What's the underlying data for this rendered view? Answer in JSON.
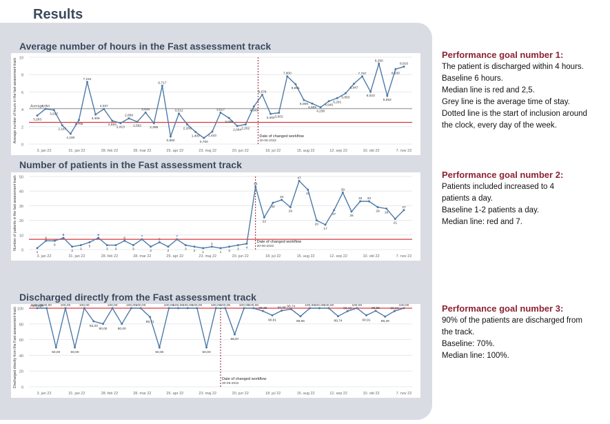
{
  "page": {
    "title": "Results"
  },
  "colors": {
    "series": "#4d79a7",
    "median": "#d9363e",
    "average": "#9a9a9a",
    "changed_workflow": "#8c1a2b",
    "goal_title": "#8c2233"
  },
  "chart_data": [
    {
      "type": "line",
      "title": "Average number of hours in the Fast assessment track",
      "ylabel": "Average number of hours in the fast assessment track",
      "ylim": [
        0,
        10
      ],
      "yticks": [
        "0",
        "2",
        "4",
        "6",
        "8",
        "10"
      ],
      "xticks": [
        "3. jan 22",
        "31. jan 22",
        "28. feb 22",
        "28. mar 22",
        "25. apr 22",
        "23. maj 22",
        "20. jun 22",
        "18. jul 22",
        "15. aug 22",
        "12. sep 22",
        "10. okt 22",
        "7. nov 22"
      ],
      "median": 2.5,
      "average": 4.1,
      "average_label": "Average",
      "changed_index": 26.5,
      "changed_label": "Date of changed workflow",
      "changed_date": "30-06-2022",
      "values": [
        3.283,
        4.054,
        3.917,
        2.167,
        1.19,
        2.766,
        7.151,
        3.406,
        4.037,
        2.683,
        2.413,
        2.958,
        2.562,
        3.634,
        2.396,
        6.717,
        0.883,
        3.512,
        2.266,
        1.4,
        0.7,
        1.433,
        3.617,
        3.009,
        2.084,
        2.262,
        4.34,
        5.678,
        3.483,
        3.602,
        7.8,
        6.891,
        5.069,
        4.665,
        4.238,
        4.945,
        5.291,
        5.853,
        6.947,
        7.797,
        6.023,
        9.25,
        5.552,
        8.63,
        8.916
      ],
      "labels": [
        "3,283",
        "4,054",
        "3,917",
        "2,167",
        "1,190",
        "2,766",
        "7,151",
        "3,406",
        "4,037",
        "2,683",
        "2,413",
        "2,958",
        "2,562",
        "3,634",
        "2,396",
        "6,717",
        "0,883",
        "3,512",
        "2,266",
        "1,400",
        "0,700",
        "1,433",
        "3,617",
        "3,009",
        "2,084",
        "2,262",
        "4,340",
        "5,678",
        "3,483",
        "3,602",
        "7,800",
        "6,891",
        "5,069",
        "4,665",
        "4,238",
        "4,945",
        "5,291",
        "5,853",
        "6,947",
        "7,797",
        "6,023",
        "9,250",
        "5,552",
        "8,630",
        "8,916"
      ]
    },
    {
      "type": "line",
      "title": "Number of patients in the Fast assessment track",
      "ylabel": "Number of patients in the fast assessment track",
      "ylim": [
        0,
        50
      ],
      "yticks": [
        "0",
        "10",
        "20",
        "30",
        "40",
        "50"
      ],
      "xticks": [
        "3. jan 22",
        "31. jan 22",
        "28. feb 22",
        "28. mar 22",
        "25. apr 22",
        "23. maj 22",
        "20. jun 22",
        "18. jul 22",
        "15. aug 22",
        "12. sep 22",
        "10. okt 22",
        "7. nov 22"
      ],
      "median": 7,
      "changed_index": 25,
      "changed_label": "Date of changed workflow",
      "changed_date": "30-06-2022",
      "values": [
        1,
        6,
        6,
        8,
        2,
        3,
        5,
        8,
        3,
        3,
        6,
        3,
        7,
        2,
        5,
        2,
        7,
        3,
        2,
        1,
        2,
        1,
        2,
        3,
        4,
        43,
        22,
        32,
        34,
        29,
        47,
        41,
        20,
        17,
        27,
        39,
        26,
        33,
        33,
        29,
        28,
        21,
        27
      ],
      "labels": [
        "1",
        "6",
        "6",
        "8",
        "2",
        "3",
        "5",
        "8",
        "3",
        "3",
        "6",
        "3",
        "7",
        "2",
        "5",
        "2",
        "7",
        "3",
        "2",
        "1",
        "2",
        "1",
        "2",
        "3",
        "4",
        "43",
        "22",
        "32",
        "34",
        "29",
        "47",
        "41",
        "20",
        "17",
        "27",
        "39",
        "26",
        "33",
        "33",
        "29",
        "28",
        "21",
        "27"
      ]
    },
    {
      "type": "line",
      "title": "Discharged directly from the Fast assessment track",
      "ylabel": "Discharged directly from the Fast assessment track",
      "ylim": [
        0,
        100
      ],
      "yticks": [
        "0",
        "20",
        "40",
        "60",
        "80",
        "100"
      ],
      "xticks": [
        "3. jan 22",
        "31. jan 22",
        "28. feb 22",
        "28. mar 22",
        "25. apr 22",
        "23. maj 22",
        "20. jun 22",
        "18. jul 22",
        "15. aug 22",
        "12. sep 22",
        "10. okt 22",
        "7. nov 22"
      ],
      "median": 100,
      "average_label": "Average",
      "changed_index": 19.5,
      "changed_label": "Date of changed workflow",
      "changed_date": "30-06-2022",
      "values": [
        100,
        100,
        50,
        100,
        50,
        100,
        83.33,
        80,
        100,
        80,
        100,
        100,
        88.71,
        50,
        100,
        100,
        100,
        100,
        50,
        100,
        100,
        66.67,
        100,
        100,
        96.35,
        90.91,
        96.88,
        98.74,
        89.66,
        100,
        100,
        100,
        89.74,
        96.15,
        100,
        90.91,
        96.55,
        89.29,
        96.24,
        100
      ],
      "labels": [
        "100,00",
        "100,00",
        "50,00",
        "100,00",
        "50,00",
        "100,00",
        "83,33",
        "80,00",
        "100,00",
        "80,00",
        "100,00",
        "100,00",
        "88,71",
        "50,00",
        "100,00",
        "100,00",
        "100,00",
        "100,00",
        "50,00",
        "100,00",
        "100,00",
        "66,67",
        "100,00",
        "100,00",
        "96,35",
        "90,91",
        "96,88",
        "98,74",
        "89,66",
        "100,00",
        "100,00",
        "100,00",
        "89,74",
        "96,15",
        "100,00",
        "90,91",
        "96,55",
        "89,29",
        "96,24",
        "100,00"
      ]
    }
  ],
  "goals": [
    {
      "title": "Performance goal number 1:",
      "lines": [
        "The patient is discharged within 4 hours.",
        "Baseline 6 hours.",
        "Median line is red and 2,5.",
        "Grey line is the average time of stay.",
        "Dotted line is the start of inclusion around",
        "the clock, every day of the week."
      ]
    },
    {
      "title": "Performance goal number 2:",
      "lines": [
        "Patients included increased to 4",
        "patients a day.",
        "Baseline 1-2 patients a day.",
        "Median line: red and 7."
      ]
    },
    {
      "title": "Performance goal number 3:",
      "lines": [
        "90% of the patients are discharged from",
        "the track.",
        "Baseline: 70%.",
        "Median line: 100%."
      ]
    }
  ]
}
